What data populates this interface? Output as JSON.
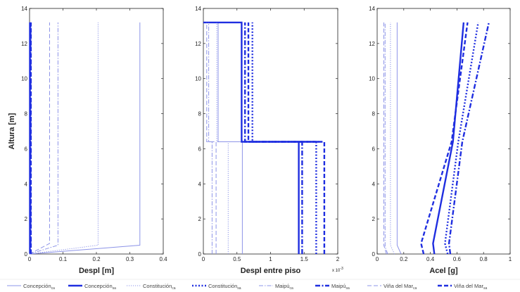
{
  "colors": {
    "series": "#1f2ee0",
    "light": "#8d94e8",
    "axis": "#222222",
    "background": "#ffffff"
  },
  "legend": [
    {
      "name": "Concepción",
      "sub": "ca",
      "style": "solid",
      "weight": "thin"
    },
    {
      "name": "Concepción",
      "sub": "sa",
      "style": "solid",
      "weight": "thick"
    },
    {
      "name": "Constitución",
      "sub": "ca",
      "style": "dotted",
      "weight": "thin"
    },
    {
      "name": "Constitución",
      "sub": "sa",
      "style": "dotted",
      "weight": "thick"
    },
    {
      "name": "Maipú",
      "sub": "ca",
      "style": "dashdot",
      "weight": "thin"
    },
    {
      "name": "Maipú",
      "sub": "sa",
      "style": "dashdot",
      "weight": "thick"
    },
    {
      "name": "Viña del Mar",
      "sub": "ca",
      "style": "dashed",
      "weight": "thin"
    },
    {
      "name": "Viña del Mar",
      "sub": "sa",
      "style": "dashed",
      "weight": "thick"
    }
  ],
  "chart_data": [
    {
      "type": "line",
      "ylabel": "Altura [m]",
      "xlabel": "Despl [m]",
      "xlim": [
        0,
        0.4
      ],
      "ylim": [
        0,
        14
      ],
      "xticks": [
        "0",
        "0.1",
        "0.2",
        "0.3",
        "0.4"
      ],
      "yticks": [
        "0",
        "2",
        "4",
        "6",
        "8",
        "10",
        "12",
        "14"
      ],
      "series": [
        {
          "name": "Concepción",
          "sub": "ca",
          "points": [
            [
              0,
              0
            ],
            [
              0.33,
              0.5
            ],
            [
              0.33,
              13.2
            ]
          ]
        },
        {
          "name": "Concepción",
          "sub": "sa",
          "points": [
            [
              0.001,
              0
            ],
            [
              0.001,
              13.2
            ]
          ]
        },
        {
          "name": "Constitución",
          "sub": "ca",
          "points": [
            [
              0,
              0
            ],
            [
              0.205,
              0.5
            ],
            [
              0.205,
              13.2
            ]
          ]
        },
        {
          "name": "Constitución",
          "sub": "sa",
          "points": [
            [
              0.002,
              0
            ],
            [
              0.002,
              13.2
            ]
          ]
        },
        {
          "name": "Maipú",
          "sub": "ca",
          "points": [
            [
              0,
              0
            ],
            [
              0.085,
              0.5
            ],
            [
              0.085,
              13.2
            ]
          ]
        },
        {
          "name": "Maipú",
          "sub": "sa",
          "points": [
            [
              0.003,
              0
            ],
            [
              0.003,
              13.2
            ]
          ]
        },
        {
          "name": "Viña del Mar",
          "sub": "ca",
          "points": [
            [
              0,
              0
            ],
            [
              0.06,
              0.6
            ],
            [
              0.06,
              13.2
            ]
          ]
        },
        {
          "name": "Viña del Mar",
          "sub": "sa",
          "points": [
            [
              0.004,
              0
            ],
            [
              0.004,
              13.2
            ]
          ]
        }
      ]
    },
    {
      "type": "line",
      "xlabel": "Despl entre piso",
      "xexponent": "x 10",
      "xexponent_power": "-3",
      "xlim": [
        0,
        2
      ],
      "ylim": [
        0,
        14
      ],
      "xticks": [
        "0",
        "0.5",
        "1",
        "1.5",
        "2"
      ],
      "yticks": [
        "0",
        "2",
        "4",
        "6",
        "8",
        "10",
        "12",
        "14"
      ],
      "series": [
        {
          "name": "Concepción",
          "sub": "ca",
          "points": [
            [
              0.58,
              0
            ],
            [
              0.58,
              6.4
            ],
            [
              0.22,
              6.4
            ],
            [
              0.22,
              13.2
            ]
          ]
        },
        {
          "name": "Concepción",
          "sub": "sa",
          "points": [
            [
              1.42,
              0
            ],
            [
              1.42,
              6.4
            ],
            [
              1.72,
              6.4
            ],
            [
              0.57,
              6.4
            ],
            [
              0.57,
              13.2
            ],
            [
              0,
              13.2
            ]
          ]
        },
        {
          "name": "Constitución",
          "sub": "ca",
          "points": [
            [
              0.37,
              0
            ],
            [
              0.37,
              6.4
            ],
            [
              0.2,
              6.4
            ],
            [
              0.2,
              13.2
            ]
          ]
        },
        {
          "name": "Constitución",
          "sub": "sa",
          "points": [
            [
              1.68,
              0
            ],
            [
              1.68,
              6.4
            ],
            [
              0.73,
              6.4
            ],
            [
              0.73,
              13.2
            ]
          ]
        },
        {
          "name": "Maipú",
          "sub": "ca",
          "points": [
            [
              0.13,
              0
            ],
            [
              0.13,
              6.4
            ],
            [
              0.08,
              6.4
            ],
            [
              0.08,
              13.2
            ]
          ]
        },
        {
          "name": "Maipú",
          "sub": "sa",
          "points": [
            [
              1.47,
              0
            ],
            [
              1.47,
              6.4
            ],
            [
              0.62,
              6.4
            ],
            [
              0.62,
              13.2
            ]
          ]
        },
        {
          "name": "Viña del Mar",
          "sub": "ca",
          "points": [
            [
              0.19,
              0
            ],
            [
              0.19,
              6.4
            ],
            [
              0.05,
              6.4
            ],
            [
              0.05,
              13.2
            ]
          ]
        },
        {
          "name": "Viña del Mar",
          "sub": "sa",
          "points": [
            [
              1.8,
              0
            ],
            [
              1.8,
              6.4
            ],
            [
              0.67,
              6.4
            ],
            [
              0.67,
              13.2
            ]
          ]
        }
      ]
    },
    {
      "type": "line",
      "xlabel": "Acel [g]",
      "xlim": [
        0,
        1
      ],
      "ylim": [
        0,
        14
      ],
      "xticks": [
        "0",
        "0.2",
        "0.4",
        "0.6",
        "0.8",
        "1"
      ],
      "yticks": [
        "0",
        "2",
        "4",
        "6",
        "8",
        "10",
        "12",
        "14"
      ],
      "series": [
        {
          "name": "Concepción",
          "sub": "ca",
          "points": [
            [
              0.18,
              0
            ],
            [
              0.15,
              0.5
            ],
            [
              0.15,
              13.2
            ]
          ]
        },
        {
          "name": "Concepción",
          "sub": "sa",
          "points": [
            [
              0.43,
              0
            ],
            [
              0.42,
              0.6
            ],
            [
              0.57,
              6.4
            ],
            [
              0.65,
              13.2
            ]
          ]
        },
        {
          "name": "Constitución",
          "sub": "ca",
          "points": [
            [
              0.13,
              0
            ],
            [
              0.1,
              0.5
            ],
            [
              0.1,
              13.2
            ]
          ]
        },
        {
          "name": "Constitución",
          "sub": "sa",
          "points": [
            [
              0.53,
              0
            ],
            [
              0.51,
              0.6
            ],
            [
              0.61,
              6.4
            ],
            [
              0.76,
              13.2
            ]
          ]
        },
        {
          "name": "Maipú",
          "sub": "ca",
          "points": [
            [
              0.08,
              0
            ],
            [
              0.06,
              0.4
            ],
            [
              0.06,
              13.2
            ]
          ]
        },
        {
          "name": "Maipú",
          "sub": "sa",
          "points": [
            [
              0.55,
              0
            ],
            [
              0.54,
              0.6
            ],
            [
              0.64,
              6.4
            ],
            [
              0.84,
              13.2
            ]
          ]
        },
        {
          "name": "Viña del Mar",
          "sub": "ca",
          "points": [
            [
              0.07,
              0
            ],
            [
              0.05,
              0.5
            ],
            [
              0.05,
              13.2
            ]
          ]
        },
        {
          "name": "Viña del Mar",
          "sub": "sa",
          "points": [
            [
              0.35,
              0
            ],
            [
              0.33,
              0.6
            ],
            [
              0.56,
              6.4
            ],
            [
              0.68,
              13.2
            ]
          ]
        }
      ]
    }
  ]
}
